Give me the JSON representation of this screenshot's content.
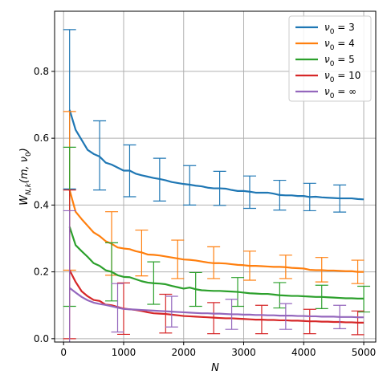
{
  "chart_data": {
    "type": "line",
    "xlabel": "N",
    "ylabel": "W_{N,k}(m, ν₀)",
    "ylabel_parts": {
      "main": "W",
      "sub": "N,k",
      "args": "(m, ν",
      "argsub": "0",
      "argend": ")"
    },
    "xlim": [
      -150,
      5200
    ],
    "ylim": [
      -0.01,
      0.98
    ],
    "x_ticks": [
      0,
      1000,
      2000,
      3000,
      4000,
      5000
    ],
    "x_tick_labels": [
      "0",
      "1000",
      "2000",
      "3000",
      "4000",
      "5000"
    ],
    "y_ticks": [
      0.0,
      0.2,
      0.4,
      0.6,
      0.8
    ],
    "y_tick_labels": [
      "0.0",
      "0.2",
      "0.4",
      "0.6",
      "0.8"
    ],
    "grid": true,
    "legend_position": "top-right",
    "x": [
      100,
      200,
      300,
      400,
      500,
      600,
      700,
      800,
      900,
      1000,
      1100,
      1200,
      1300,
      1400,
      1500,
      1600,
      1700,
      1800,
      1900,
      2000,
      2100,
      2200,
      2300,
      2400,
      2500,
      2600,
      2700,
      2800,
      2900,
      3000,
      3100,
      3200,
      3300,
      3400,
      3500,
      3600,
      3700,
      3800,
      3900,
      4000,
      4100,
      4200,
      4300,
      4400,
      4500,
      4600,
      4700,
      4800,
      4900,
      5000
    ],
    "series": [
      {
        "name": "ν₀ = 3",
        "legend_main": "ν",
        "legend_sub": "0",
        "legend_rest": " = 3",
        "color": "#1f77b4",
        "values": [
          0.685,
          0.625,
          0.595,
          0.565,
          0.553,
          0.545,
          0.527,
          0.521,
          0.512,
          0.503,
          0.503,
          0.494,
          0.489,
          0.485,
          0.481,
          0.478,
          0.474,
          0.469,
          0.466,
          0.463,
          0.461,
          0.458,
          0.456,
          0.452,
          0.45,
          0.45,
          0.449,
          0.445,
          0.442,
          0.442,
          0.44,
          0.437,
          0.437,
          0.437,
          0.434,
          0.43,
          0.429,
          0.429,
          0.427,
          0.427,
          0.424,
          0.425,
          0.423,
          0.422,
          0.421,
          0.42,
          0.42,
          0.42,
          0.418,
          0.417
        ],
        "errorbars": [
          {
            "x": 100,
            "y": 0.685,
            "lo": 0.448,
            "hi": 0.925
          },
          {
            "x": 600,
            "y": 0.545,
            "lo": 0.445,
            "hi": 0.652
          },
          {
            "x": 1100,
            "y": 0.503,
            "lo": 0.425,
            "hi": 0.58
          },
          {
            "x": 1600,
            "y": 0.478,
            "lo": 0.412,
            "hi": 0.54
          },
          {
            "x": 2100,
            "y": 0.461,
            "lo": 0.4,
            "hi": 0.518
          },
          {
            "x": 2600,
            "y": 0.45,
            "lo": 0.399,
            "hi": 0.501
          },
          {
            "x": 3100,
            "y": 0.44,
            "lo": 0.39,
            "hi": 0.487
          },
          {
            "x": 3600,
            "y": 0.43,
            "lo": 0.385,
            "hi": 0.474
          },
          {
            "x": 4100,
            "y": 0.424,
            "lo": 0.383,
            "hi": 0.465
          },
          {
            "x": 4600,
            "y": 0.42,
            "lo": 0.379,
            "hi": 0.46
          }
        ]
      },
      {
        "name": "ν₀ = 4",
        "legend_main": "ν",
        "legend_sub": "0",
        "legend_rest": " = 4",
        "color": "#ff7f0e",
        "values": [
          0.445,
          0.38,
          0.358,
          0.338,
          0.318,
          0.307,
          0.292,
          0.284,
          0.273,
          0.27,
          0.268,
          0.262,
          0.258,
          0.252,
          0.251,
          0.249,
          0.246,
          0.243,
          0.24,
          0.237,
          0.236,
          0.234,
          0.231,
          0.228,
          0.226,
          0.226,
          0.225,
          0.223,
          0.221,
          0.22,
          0.218,
          0.218,
          0.217,
          0.216,
          0.215,
          0.215,
          0.214,
          0.212,
          0.211,
          0.21,
          0.206,
          0.205,
          0.205,
          0.204,
          0.204,
          0.203,
          0.202,
          0.202,
          0.2,
          0.2
        ],
        "errorbars": [
          {
            "x": 100,
            "y": 0.445,
            "lo": 0.205,
            "hi": 0.68
          },
          {
            "x": 800,
            "y": 0.284,
            "lo": 0.19,
            "hi": 0.38
          },
          {
            "x": 1300,
            "y": 0.258,
            "lo": 0.188,
            "hi": 0.325
          },
          {
            "x": 1900,
            "y": 0.24,
            "lo": 0.18,
            "hi": 0.295
          },
          {
            "x": 2500,
            "y": 0.226,
            "lo": 0.18,
            "hi": 0.275
          },
          {
            "x": 3100,
            "y": 0.218,
            "lo": 0.175,
            "hi": 0.262
          },
          {
            "x": 3700,
            "y": 0.214,
            "lo": 0.18,
            "hi": 0.25
          },
          {
            "x": 4300,
            "y": 0.205,
            "lo": 0.17,
            "hi": 0.243
          },
          {
            "x": 4900,
            "y": 0.2,
            "lo": 0.165,
            "hi": 0.235
          }
        ]
      },
      {
        "name": "ν₀ = 5",
        "legend_main": "ν",
        "legend_sub": "0",
        "legend_rest": " = 5",
        "color": "#2ca02c",
        "values": [
          0.335,
          0.28,
          0.262,
          0.245,
          0.226,
          0.218,
          0.205,
          0.2,
          0.19,
          0.185,
          0.184,
          0.178,
          0.172,
          0.168,
          0.166,
          0.165,
          0.163,
          0.158,
          0.154,
          0.15,
          0.153,
          0.148,
          0.145,
          0.144,
          0.143,
          0.143,
          0.142,
          0.141,
          0.14,
          0.138,
          0.136,
          0.135,
          0.134,
          0.134,
          0.132,
          0.13,
          0.129,
          0.128,
          0.128,
          0.127,
          0.126,
          0.125,
          0.125,
          0.124,
          0.123,
          0.122,
          0.121,
          0.121,
          0.12,
          0.12
        ],
        "errorbars": [
          {
            "x": 100,
            "y": 0.335,
            "lo": 0.097,
            "hi": 0.573
          },
          {
            "x": 800,
            "y": 0.2,
            "lo": 0.113,
            "hi": 0.287
          },
          {
            "x": 1500,
            "y": 0.166,
            "lo": 0.103,
            "hi": 0.23
          },
          {
            "x": 2200,
            "y": 0.148,
            "lo": 0.097,
            "hi": 0.198
          },
          {
            "x": 2900,
            "y": 0.14,
            "lo": 0.097,
            "hi": 0.183
          },
          {
            "x": 3600,
            "y": 0.13,
            "lo": 0.092,
            "hi": 0.168
          },
          {
            "x": 4300,
            "y": 0.125,
            "lo": 0.09,
            "hi": 0.16
          },
          {
            "x": 5000,
            "y": 0.12,
            "lo": 0.08,
            "hi": 0.157
          }
        ]
      },
      {
        "name": "ν₀ = 10",
        "legend_main": "ν",
        "legend_sub": "0",
        "legend_rest": " = 10",
        "color": "#d62728",
        "values": [
          0.205,
          0.17,
          0.142,
          0.127,
          0.116,
          0.113,
          0.102,
          0.1,
          0.095,
          0.09,
          0.088,
          0.086,
          0.083,
          0.079,
          0.076,
          0.075,
          0.074,
          0.072,
          0.07,
          0.068,
          0.067,
          0.066,
          0.065,
          0.064,
          0.063,
          0.062,
          0.061,
          0.061,
          0.06,
          0.059,
          0.058,
          0.057,
          0.057,
          0.056,
          0.056,
          0.055,
          0.055,
          0.054,
          0.054,
          0.053,
          0.052,
          0.052,
          0.051,
          0.051,
          0.05,
          0.05,
          0.049,
          0.049,
          0.048,
          0.048
        ],
        "errorbars": [
          {
            "x": 100,
            "y": 0.205,
            "lo": 0.0,
            "hi": 0.445
          },
          {
            "x": 1000,
            "y": 0.09,
            "lo": 0.013,
            "hi": 0.167
          },
          {
            "x": 1700,
            "y": 0.074,
            "lo": 0.017,
            "hi": 0.133
          },
          {
            "x": 2500,
            "y": 0.063,
            "lo": 0.015,
            "hi": 0.108
          },
          {
            "x": 3300,
            "y": 0.057,
            "lo": 0.015,
            "hi": 0.1
          },
          {
            "x": 4100,
            "y": 0.052,
            "lo": 0.015,
            "hi": 0.088
          },
          {
            "x": 4900,
            "y": 0.048,
            "lo": 0.012,
            "hi": 0.083
          }
        ]
      },
      {
        "name": "ν₀ = ∞",
        "legend_main": "ν",
        "legend_sub": "0",
        "legend_rest": " = ∞",
        "color": "#9467bd",
        "values": [
          0.152,
          0.138,
          0.125,
          0.115,
          0.108,
          0.104,
          0.101,
          0.097,
          0.093,
          0.089,
          0.088,
          0.087,
          0.086,
          0.085,
          0.084,
          0.083,
          0.082,
          0.081,
          0.08,
          0.079,
          0.078,
          0.077,
          0.076,
          0.076,
          0.075,
          0.075,
          0.074,
          0.073,
          0.073,
          0.072,
          0.072,
          0.071,
          0.071,
          0.07,
          0.07,
          0.069,
          0.069,
          0.069,
          0.068,
          0.068,
          0.067,
          0.067,
          0.066,
          0.066,
          0.066,
          0.065,
          0.065,
          0.065,
          0.064,
          0.064
        ],
        "errorbars": [
          {
            "x": 100,
            "y": 0.152,
            "lo": -0.08,
            "hi": 0.383
          },
          {
            "x": 900,
            "y": 0.093,
            "lo": 0.02,
            "hi": 0.165
          },
          {
            "x": 1800,
            "y": 0.081,
            "lo": 0.035,
            "hi": 0.127
          },
          {
            "x": 2800,
            "y": 0.073,
            "lo": 0.028,
            "hi": 0.118
          },
          {
            "x": 3700,
            "y": 0.069,
            "lo": 0.028,
            "hi": 0.105
          },
          {
            "x": 4600,
            "y": 0.065,
            "lo": 0.03,
            "hi": 0.1
          }
        ]
      }
    ]
  }
}
